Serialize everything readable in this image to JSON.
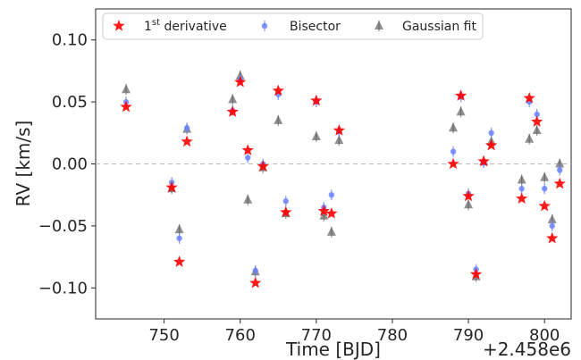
{
  "chart_data": {
    "type": "scatter",
    "title": "",
    "xlabel": "Time [BJD]",
    "ylabel": "RV [km/s]",
    "x_offset_label": "+2.458e6",
    "xlim": [
      741,
      803.5
    ],
    "ylim": [
      -0.125,
      0.125
    ],
    "x_ticks": [
      750,
      760,
      770,
      780,
      790,
      800
    ],
    "x_tick_labels": [
      "750",
      "760",
      "770",
      "780",
      "790",
      "800"
    ],
    "y_ticks": [
      -0.1,
      -0.05,
      0.0,
      0.05,
      0.1
    ],
    "y_tick_labels": [
      "−0.10",
      "−0.05",
      "0.00",
      "0.05",
      "0.10"
    ],
    "grid": false,
    "zero_line": true,
    "legend_position": "top",
    "legend": [
      {
        "label_base": "1",
        "label_sup": "st",
        "label_rest": " derivative",
        "marker": "star",
        "color": "#ff0000"
      },
      {
        "label": "Bisector",
        "marker": "circle",
        "color": "#6b83ff"
      },
      {
        "label": "Gaussian fit",
        "marker": "triangle",
        "color": "#555555"
      }
    ],
    "x": [
      745,
      751,
      752,
      753,
      759,
      760,
      761,
      762,
      763,
      765,
      766,
      770,
      771,
      772,
      773,
      788,
      789,
      790,
      791,
      792,
      793,
      797,
      798,
      799,
      800,
      801,
      802
    ],
    "series": [
      {
        "name": "1st derivative",
        "color": "#ff0000",
        "values": [
          0.046,
          -0.019,
          -0.079,
          0.018,
          0.042,
          0.066,
          0.011,
          -0.096,
          -0.002,
          0.059,
          -0.039,
          0.051,
          -0.038,
          -0.04,
          0.027,
          0.0,
          0.055,
          -0.026,
          -0.089,
          0.002,
          0.015,
          -0.028,
          0.053,
          0.034,
          -0.034,
          -0.06,
          -0.016
        ]
      },
      {
        "name": "Bisector",
        "color": "#6b83ff",
        "values": [
          0.05,
          -0.015,
          -0.06,
          0.029,
          0.043,
          0.068,
          0.005,
          -0.086,
          0.0,
          0.056,
          -0.03,
          0.05,
          -0.035,
          -0.025,
          0.026,
          0.01,
          0.054,
          -0.024,
          -0.085,
          0.001,
          0.025,
          -0.02,
          0.05,
          0.04,
          -0.02,
          -0.05,
          -0.005
        ]
      },
      {
        "name": "Gaussian fit",
        "color": "#555555",
        "values": [
          0.06,
          -0.02,
          -0.053,
          0.028,
          0.052,
          0.071,
          -0.029,
          -0.087,
          -0.003,
          0.035,
          -0.04,
          0.022,
          -0.042,
          -0.055,
          0.019,
          0.029,
          0.042,
          -0.033,
          -0.091,
          0.002,
          0.018,
          -0.013,
          0.02,
          0.027,
          -0.011,
          -0.045,
          0.0
        ]
      }
    ]
  }
}
